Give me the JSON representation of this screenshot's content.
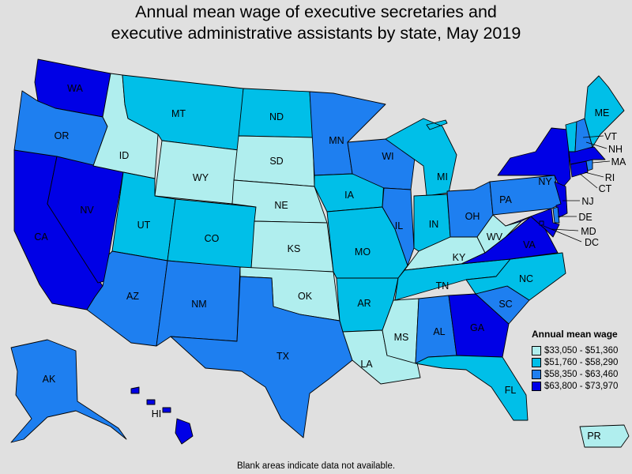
{
  "title_line1": "Annual mean wage of executive secretaries and",
  "title_line2": "executive administrative assistants by state, May 2019",
  "legend": {
    "title": "Annual mean wage",
    "bins": [
      {
        "label": "$33,050 - $51,360",
        "color": "#b0eeee"
      },
      {
        "label": "$51,760 - $58,290",
        "color": "#00bfe8"
      },
      {
        "label": "$58,350 - $63,460",
        "color": "#1e7ff0"
      },
      {
        "label": "$63,800 - $73,970",
        "color": "#0000e6"
      }
    ]
  },
  "footnote": "Blank areas indicate data not available.",
  "states": {
    "WA": 3,
    "OR": 2,
    "CA": 3,
    "NV": 3,
    "ID": 0,
    "MT": 1,
    "WY": 0,
    "UT": 1,
    "CO": 1,
    "AZ": 2,
    "NM": 2,
    "ND": 1,
    "SD": 0,
    "NE": 0,
    "KS": 0,
    "OK": 0,
    "TX": 2,
    "MN": 2,
    "IA": 1,
    "MO": 1,
    "AR": 1,
    "LA": 0,
    "WI": 2,
    "IL": 2,
    "MI": 1,
    "IN": 1,
    "OH": 2,
    "KY": 0,
    "TN": 1,
    "MS": 0,
    "AL": 2,
    "GA": 3,
    "FL": 1,
    "SC": 2,
    "NC": 1,
    "VA": 3,
    "WV": 0,
    "PA": 2,
    "NY": 3,
    "NJ": 3,
    "DE": 2,
    "MD": 3,
    "DC": 3,
    "CT": 3,
    "RI": 2,
    "MA": 3,
    "VT": 1,
    "NH": 2,
    "ME": 1,
    "AK": 2,
    "HI": 3,
    "PR": 0
  }
}
